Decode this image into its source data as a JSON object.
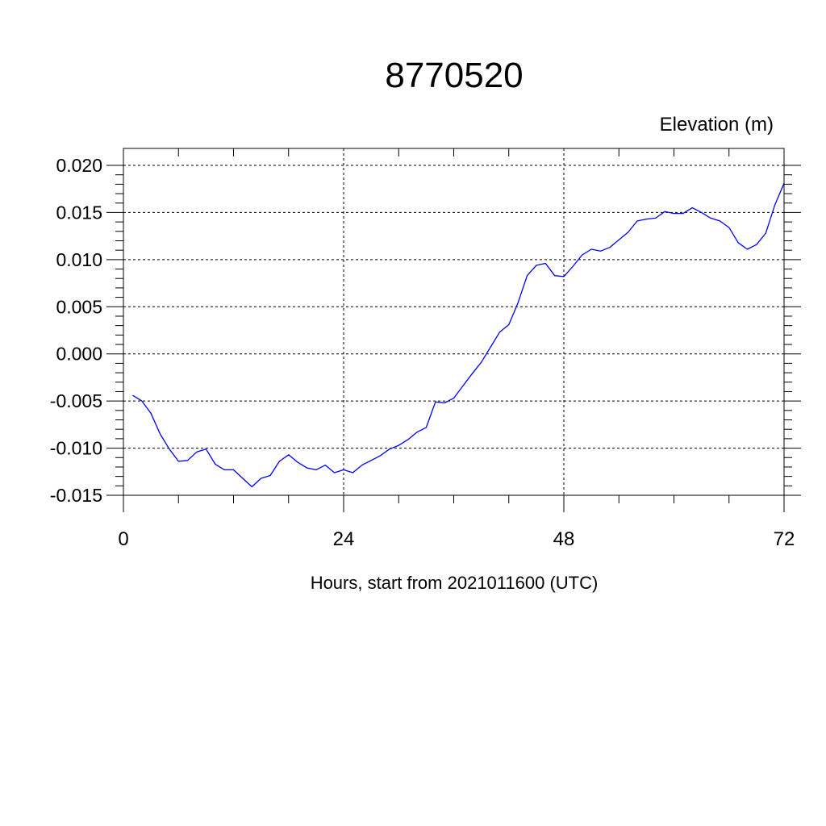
{
  "chart_data": {
    "type": "line",
    "title": "8770520",
    "ylabel": "Elevation (m)",
    "xlabel": "Hours, start from 2021011600 (UTC)",
    "xlim": [
      0,
      72
    ],
    "ylim": [
      -0.015,
      0.02
    ],
    "x_ticks": [
      0,
      24,
      48,
      72
    ],
    "x_tick_labels": [
      "0",
      "24",
      "48",
      "72"
    ],
    "y_ticks": [
      -0.015,
      -0.01,
      -0.005,
      0.0,
      0.005,
      0.01,
      0.015,
      0.02
    ],
    "y_tick_labels": [
      "-0.015",
      "-0.010",
      "-0.005",
      "0.000",
      "0.005",
      "0.010",
      "0.015",
      "0.020"
    ],
    "grid": true,
    "line_color": "#0000ff",
    "series": [
      {
        "x": [
          1,
          2,
          3,
          4,
          5,
          6,
          7,
          8,
          9,
          10,
          11,
          12,
          13,
          14,
          15,
          16,
          17,
          18,
          19,
          20,
          21,
          22,
          23,
          24,
          25,
          26,
          27,
          28,
          29,
          30,
          31,
          32,
          33,
          34,
          35,
          36,
          37,
          38,
          39,
          40,
          41,
          42,
          43,
          44,
          45,
          46,
          47,
          48,
          49,
          50,
          51,
          52,
          53,
          54,
          55,
          56,
          57,
          58,
          59,
          60,
          61,
          62,
          63,
          64,
          65,
          66,
          67,
          68,
          69,
          70,
          71,
          72
        ],
        "values": [
          -0.0044,
          -0.005,
          -0.0063,
          -0.0085,
          -0.0101,
          -0.0114,
          -0.0113,
          -0.0104,
          -0.0101,
          -0.0117,
          -0.0123,
          -0.0123,
          -0.0132,
          -0.0141,
          -0.0132,
          -0.0129,
          -0.0114,
          -0.0107,
          -0.0115,
          -0.0121,
          -0.0123,
          -0.0118,
          -0.0126,
          -0.0123,
          -0.0126,
          -0.0118,
          -0.0113,
          -0.0108,
          -0.0101,
          -0.0097,
          -0.0091,
          -0.0083,
          -0.0078,
          -0.0051,
          -0.0052,
          -0.0047,
          -0.0034,
          -0.0021,
          -0.0009,
          0.0007,
          0.0023,
          0.0031,
          0.0054,
          0.0083,
          0.0094,
          0.0096,
          0.0083,
          0.0082,
          0.0093,
          0.0105,
          0.0111,
          0.0109,
          0.0113,
          0.0121,
          0.0129,
          0.0141,
          0.0143,
          0.0144,
          0.0151,
          0.0149,
          0.0149,
          0.0155,
          0.015,
          0.0144,
          0.0141,
          0.0134,
          0.0118,
          0.0111,
          0.0116,
          0.0128,
          0.0158,
          0.0181
        ]
      }
    ]
  }
}
